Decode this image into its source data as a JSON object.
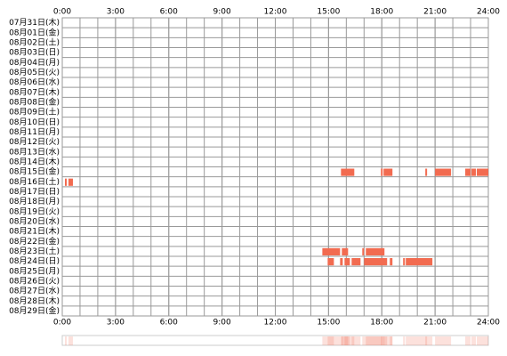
{
  "chart_data": {
    "type": "timeline",
    "xlim": [
      0,
      24
    ],
    "xticks": [
      {
        "value": 0,
        "label": "0:00"
      },
      {
        "value": 3,
        "label": "3:00"
      },
      {
        "value": 6,
        "label": "6:00"
      },
      {
        "value": 9,
        "label": "9:00"
      },
      {
        "value": 12,
        "label": "12:00"
      },
      {
        "value": 15,
        "label": "15:00"
      },
      {
        "value": 18,
        "label": "18:00"
      },
      {
        "value": 21,
        "label": "21:00"
      },
      {
        "value": 24,
        "label": "24:00"
      }
    ],
    "categories": [
      "07月31日(木)",
      "08月01日(金)",
      "08月02日(土)",
      "08月03日(日)",
      "08月04日(月)",
      "08月05日(火)",
      "08月06日(水)",
      "08月07日(木)",
      "08月08日(金)",
      "08月09日(土)",
      "08月10日(日)",
      "08月11日(月)",
      "08月12日(火)",
      "08月13日(水)",
      "08月14日(木)",
      "08月15日(金)",
      "08月16日(土)",
      "08月17日(日)",
      "08月18日(月)",
      "08月19日(火)",
      "08月20日(水)",
      "08月21日(木)",
      "08月22日(金)",
      "08月23日(土)",
      "08月24日(日)",
      "08月25日(月)",
      "08月26日(火)",
      "08月27日(水)",
      "08月28日(木)",
      "08月29日(金)"
    ],
    "color": "#f26b50",
    "segments": [
      [],
      [],
      [],
      [],
      [],
      [],
      [],
      [],
      [],
      [],
      [],
      [],
      [],
      [],
      [],
      [
        [
          15.7,
          16.45
        ],
        [
          17.95,
          18.05
        ],
        [
          18.1,
          18.6
        ],
        [
          20.45,
          20.55
        ],
        [
          21.0,
          21.9
        ],
        [
          22.7,
          23.0
        ],
        [
          23.05,
          23.3
        ],
        [
          23.35,
          24
        ]
      ],
      [
        [
          0.15,
          0.25
        ],
        [
          0.35,
          0.6
        ]
      ],
      [],
      [],
      [],
      [],
      [],
      [],
      [
        [
          14.65,
          15.65
        ],
        [
          15.75,
          16.1
        ],
        [
          16.9,
          17.0
        ],
        [
          17.1,
          18.15
        ]
      ],
      [
        [
          14.95,
          15.3
        ],
        [
          15.65,
          15.8
        ],
        [
          15.9,
          16.2
        ],
        [
          16.3,
          16.8
        ],
        [
          17.0,
          18.3
        ],
        [
          18.45,
          18.6
        ],
        [
          19.2,
          19.3
        ],
        [
          19.35,
          20.85
        ]
      ],
      [],
      [],
      [],
      [],
      []
    ]
  }
}
